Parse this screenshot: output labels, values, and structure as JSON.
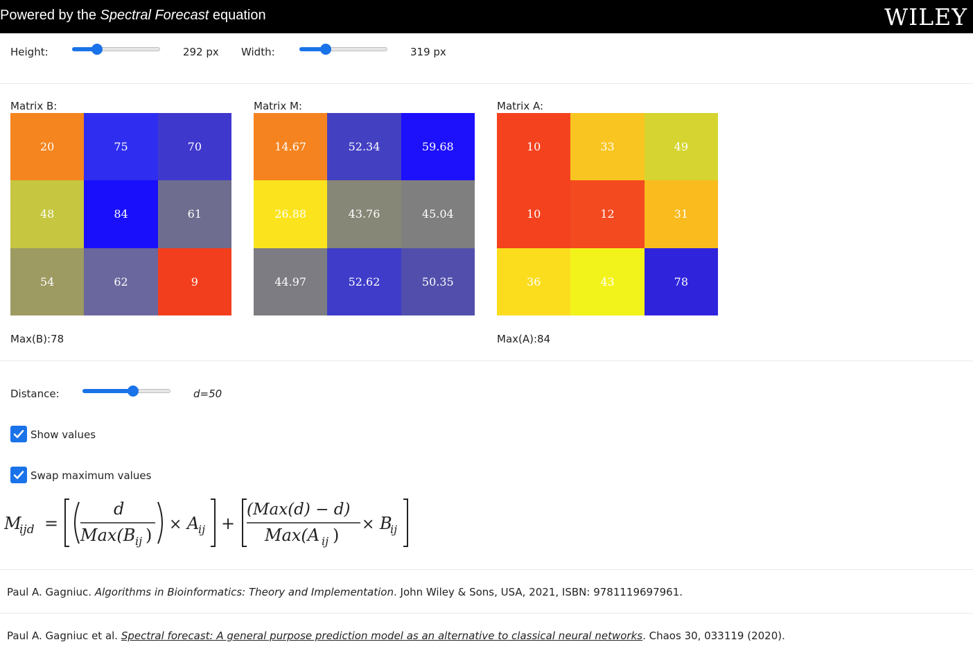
{
  "header": {
    "title_pre": "Powered by the ",
    "title_em": "Spectral Forecast",
    "title_post": " equation",
    "logo": "WILEY"
  },
  "controls": {
    "height_label": "Height:",
    "height_value": "292 px",
    "height_fraction": 0.25,
    "width_label": "Width:",
    "width_value": "319 px",
    "width_fraction": 0.27,
    "distance_label": "Distance:",
    "distance_value": "d=50",
    "distance_fraction": 0.59,
    "show_values_label": "Show values",
    "swap_max_label": "Swap maximum values"
  },
  "matrices": [
    {
      "name": "Matrix B:",
      "footer": "Max(B):78",
      "cells": [
        {
          "v": "20",
          "c": "#f5851f"
        },
        {
          "v": "75",
          "c": "#2f2ef0"
        },
        {
          "v": "70",
          "c": "#3f38cc"
        },
        {
          "v": "48",
          "c": "#c6c640"
        },
        {
          "v": "84",
          "c": "#1a0ffb"
        },
        {
          "v": "61",
          "c": "#6e6d8f"
        },
        {
          "v": "54",
          "c": "#9d9a62"
        },
        {
          "v": "62",
          "c": "#6a679e"
        },
        {
          "v": "9",
          "c": "#f33e1e"
        }
      ]
    },
    {
      "name": "Matrix M:",
      "footer": "",
      "cells": [
        {
          "v": "14.67",
          "c": "#f5831f"
        },
        {
          "v": "52.34",
          "c": "#4340c2"
        },
        {
          "v": "59.68",
          "c": "#1d10fb"
        },
        {
          "v": "26.88",
          "c": "#fbe41e"
        },
        {
          "v": "43.76",
          "c": "#878777"
        },
        {
          "v": "45.04",
          "c": "#7f7f80"
        },
        {
          "v": "44.97",
          "c": "#7d7c82"
        },
        {
          "v": "52.62",
          "c": "#3e3cc9"
        },
        {
          "v": "50.35",
          "c": "#524fac"
        }
      ]
    },
    {
      "name": "Matrix A:",
      "footer": "Max(A):84",
      "cells": [
        {
          "v": "10",
          "c": "#f4421f"
        },
        {
          "v": "33",
          "c": "#f9c520"
        },
        {
          "v": "49",
          "c": "#d5d430"
        },
        {
          "v": "10",
          "c": "#f4421f"
        },
        {
          "v": "12",
          "c": "#f34a1f"
        },
        {
          "v": "31",
          "c": "#f9bb1e"
        },
        {
          "v": "36",
          "c": "#fbdd1e"
        },
        {
          "v": "43",
          "c": "#f3f31c"
        },
        {
          "v": "78",
          "c": "#2f24dc"
        }
      ]
    }
  ],
  "formula": {
    "lhs": "M",
    "lhs_sub": "ijd",
    "eq": "=",
    "d": "d",
    "max_b": "Max(B",
    "sub_ij": "ij",
    "close_paren": ")",
    "times": "×",
    "a": "A",
    "plus": "+",
    "max_d_minus_d": "(Max(d) − d)",
    "max_a": "Max(A",
    "b": "B"
  },
  "references": [
    {
      "pre": "Paul A. Gagniuc. ",
      "em": "Algorithms in Bioinformatics: Theory and Implementation",
      "post": ". John Wiley & Sons, USA, 2021, ISBN: 9781119697961."
    },
    {
      "pre": "Paul A. Gagniuc et al. ",
      "link": "Spectral forecast: A general purpose prediction model as an alternative to classical neural networks",
      "post": ". Chaos 30, 033119 (2020)."
    }
  ]
}
